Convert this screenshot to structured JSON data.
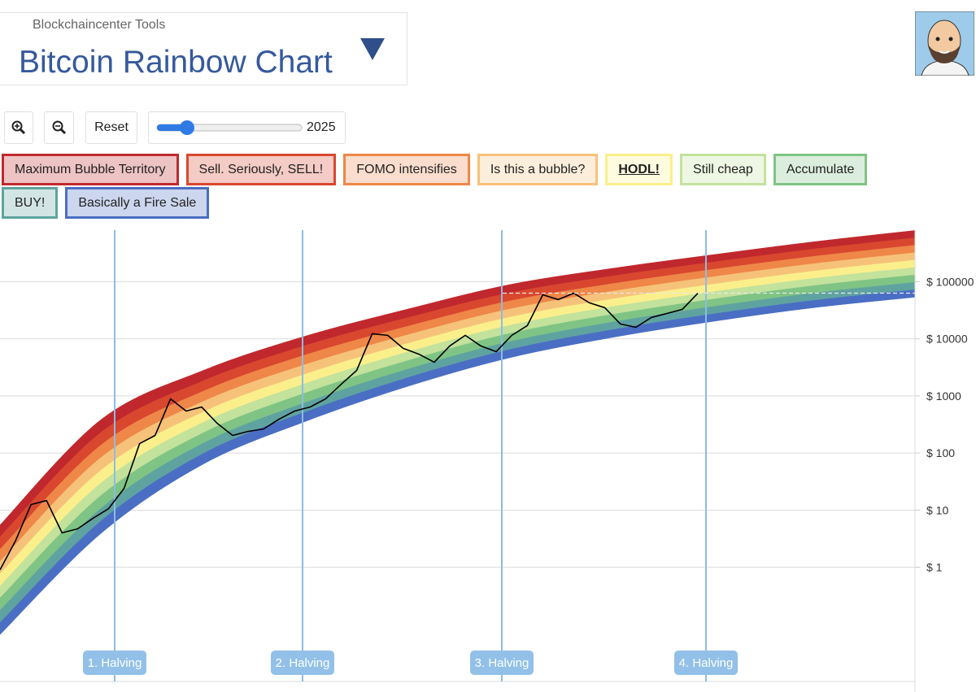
{
  "header": {
    "label": "Blockchaincenter Tools",
    "title": "Bitcoin Rainbow Chart"
  },
  "controls": {
    "reset": "Reset",
    "year": 2025
  },
  "chart_data": [
    {
      "type": "line",
      "categories": [
        null,
        null,
        null,
        null,
        null,
        null,
        null,
        null,
        null,
        null,
        null,
        null,
        null,
        null,
        null,
        null,
        null,
        null,
        null,
        null,
        null,
        null,
        null,
        null,
        null,
        null,
        null,
        null,
        null,
        null,
        null,
        null,
        null,
        null,
        null,
        null,
        null,
        null,
        null,
        null,
        null,
        null,
        null,
        null,
        null,
        null
      ],
      "values": [
        0.9,
        2.9,
        12.5,
        14.7,
        4.0,
        4.7,
        7.2,
        10.6,
        24,
        146,
        203,
        889,
        543,
        640,
        332,
        203,
        239,
        264,
        392,
        543,
        640,
        889,
        1600,
        2800,
        12250,
        11500,
        6800,
        5400,
        3890,
        7500,
        11500,
        7500,
        5950,
        11500,
        17000,
        59000,
        48600,
        63000,
        42700,
        35000,
        18200,
        15900,
        23600,
        27800,
        32800,
        63000
      ],
      "color": "#000000",
      "log_scale": true,
      "grid": true,
      "ylim": [
        0.01,
        800000
      ],
      "yticks": [
        {
          "value": 1,
          "label": "$ 1"
        },
        {
          "value": 10,
          "label": "$ 10"
        },
        {
          "value": 100,
          "label": "$ 100"
        },
        {
          "value": 1000,
          "label": "$ 1000"
        },
        {
          "value": 10000,
          "label": "$ 10000"
        },
        {
          "value": 100000,
          "label": "$ 100000"
        }
      ],
      "annotations": [
        "1. Halving",
        "2. Halving",
        "3. Halving",
        "4. Halving"
      ]
    },
    {
      "type": "area",
      "categories": [
        null,
        null,
        null,
        null,
        null,
        null,
        null,
        null,
        null,
        null
      ],
      "series": [
        {
          "name": "Maximum Bubble Territory",
          "color": "#c0282d",
          "values": [
            5.5,
            392,
            2800,
            11100,
            32800,
            88000,
            169000,
            295000,
            499000,
            789000
          ]
        },
        {
          "name": "Sell. Seriously, SELL!",
          "color": "#d9472f",
          "values": [
            3.4,
            234,
            1840,
            7600,
            23200,
            63000,
            124000,
            219000,
            372000,
            586000
          ]
        },
        {
          "name": "FOMO intensifies",
          "color": "#ee8748",
          "values": [
            2.06,
            141,
            1210,
            5200,
            16400,
            45500,
            91000,
            163000,
            277000,
            435000
          ]
        },
        {
          "name": "Is this a bubble?",
          "color": "#f6c27a",
          "values": [
            1.26,
            85,
            800,
            3520,
            11600,
            32800,
            67000,
            121000,
            206000,
            322000
          ]
        },
        {
          "name": "HODL!",
          "color": "#fbef8c",
          "values": [
            0.77,
            51,
            524,
            2400,
            8200,
            23600,
            49000,
            89500,
            153000,
            239000
          ]
        },
        {
          "name": "Still cheap",
          "color": "#c3e29c",
          "values": [
            0.47,
            30.5,
            344,
            1640,
            5800,
            17000,
            36000,
            66000,
            114000,
            177000
          ]
        },
        {
          "name": "Accumulate",
          "color": "#7fc484",
          "values": [
            0.29,
            18.4,
            226,
            1120,
            4100,
            12250,
            26300,
            49000,
            85000,
            131000
          ]
        },
        {
          "name": "BUY!",
          "color": "#5fa3a0",
          "values": [
            0.176,
            11,
            149,
            760,
            2900,
            8800,
            19300,
            36400,
            63000,
            97500
          ]
        },
        {
          "name": "Basically a Fire Sale",
          "color": "#4a6ec4",
          "values": [
            0.107,
            6.6,
            98,
            520,
            2060,
            6400,
            14200,
            27000,
            47000,
            72000
          ]
        }
      ],
      "floor": [
        0.066,
        4.0,
        64,
        355,
        1450,
        4600,
        10400,
        20000,
        35000,
        53600
      ]
    }
  ]
}
